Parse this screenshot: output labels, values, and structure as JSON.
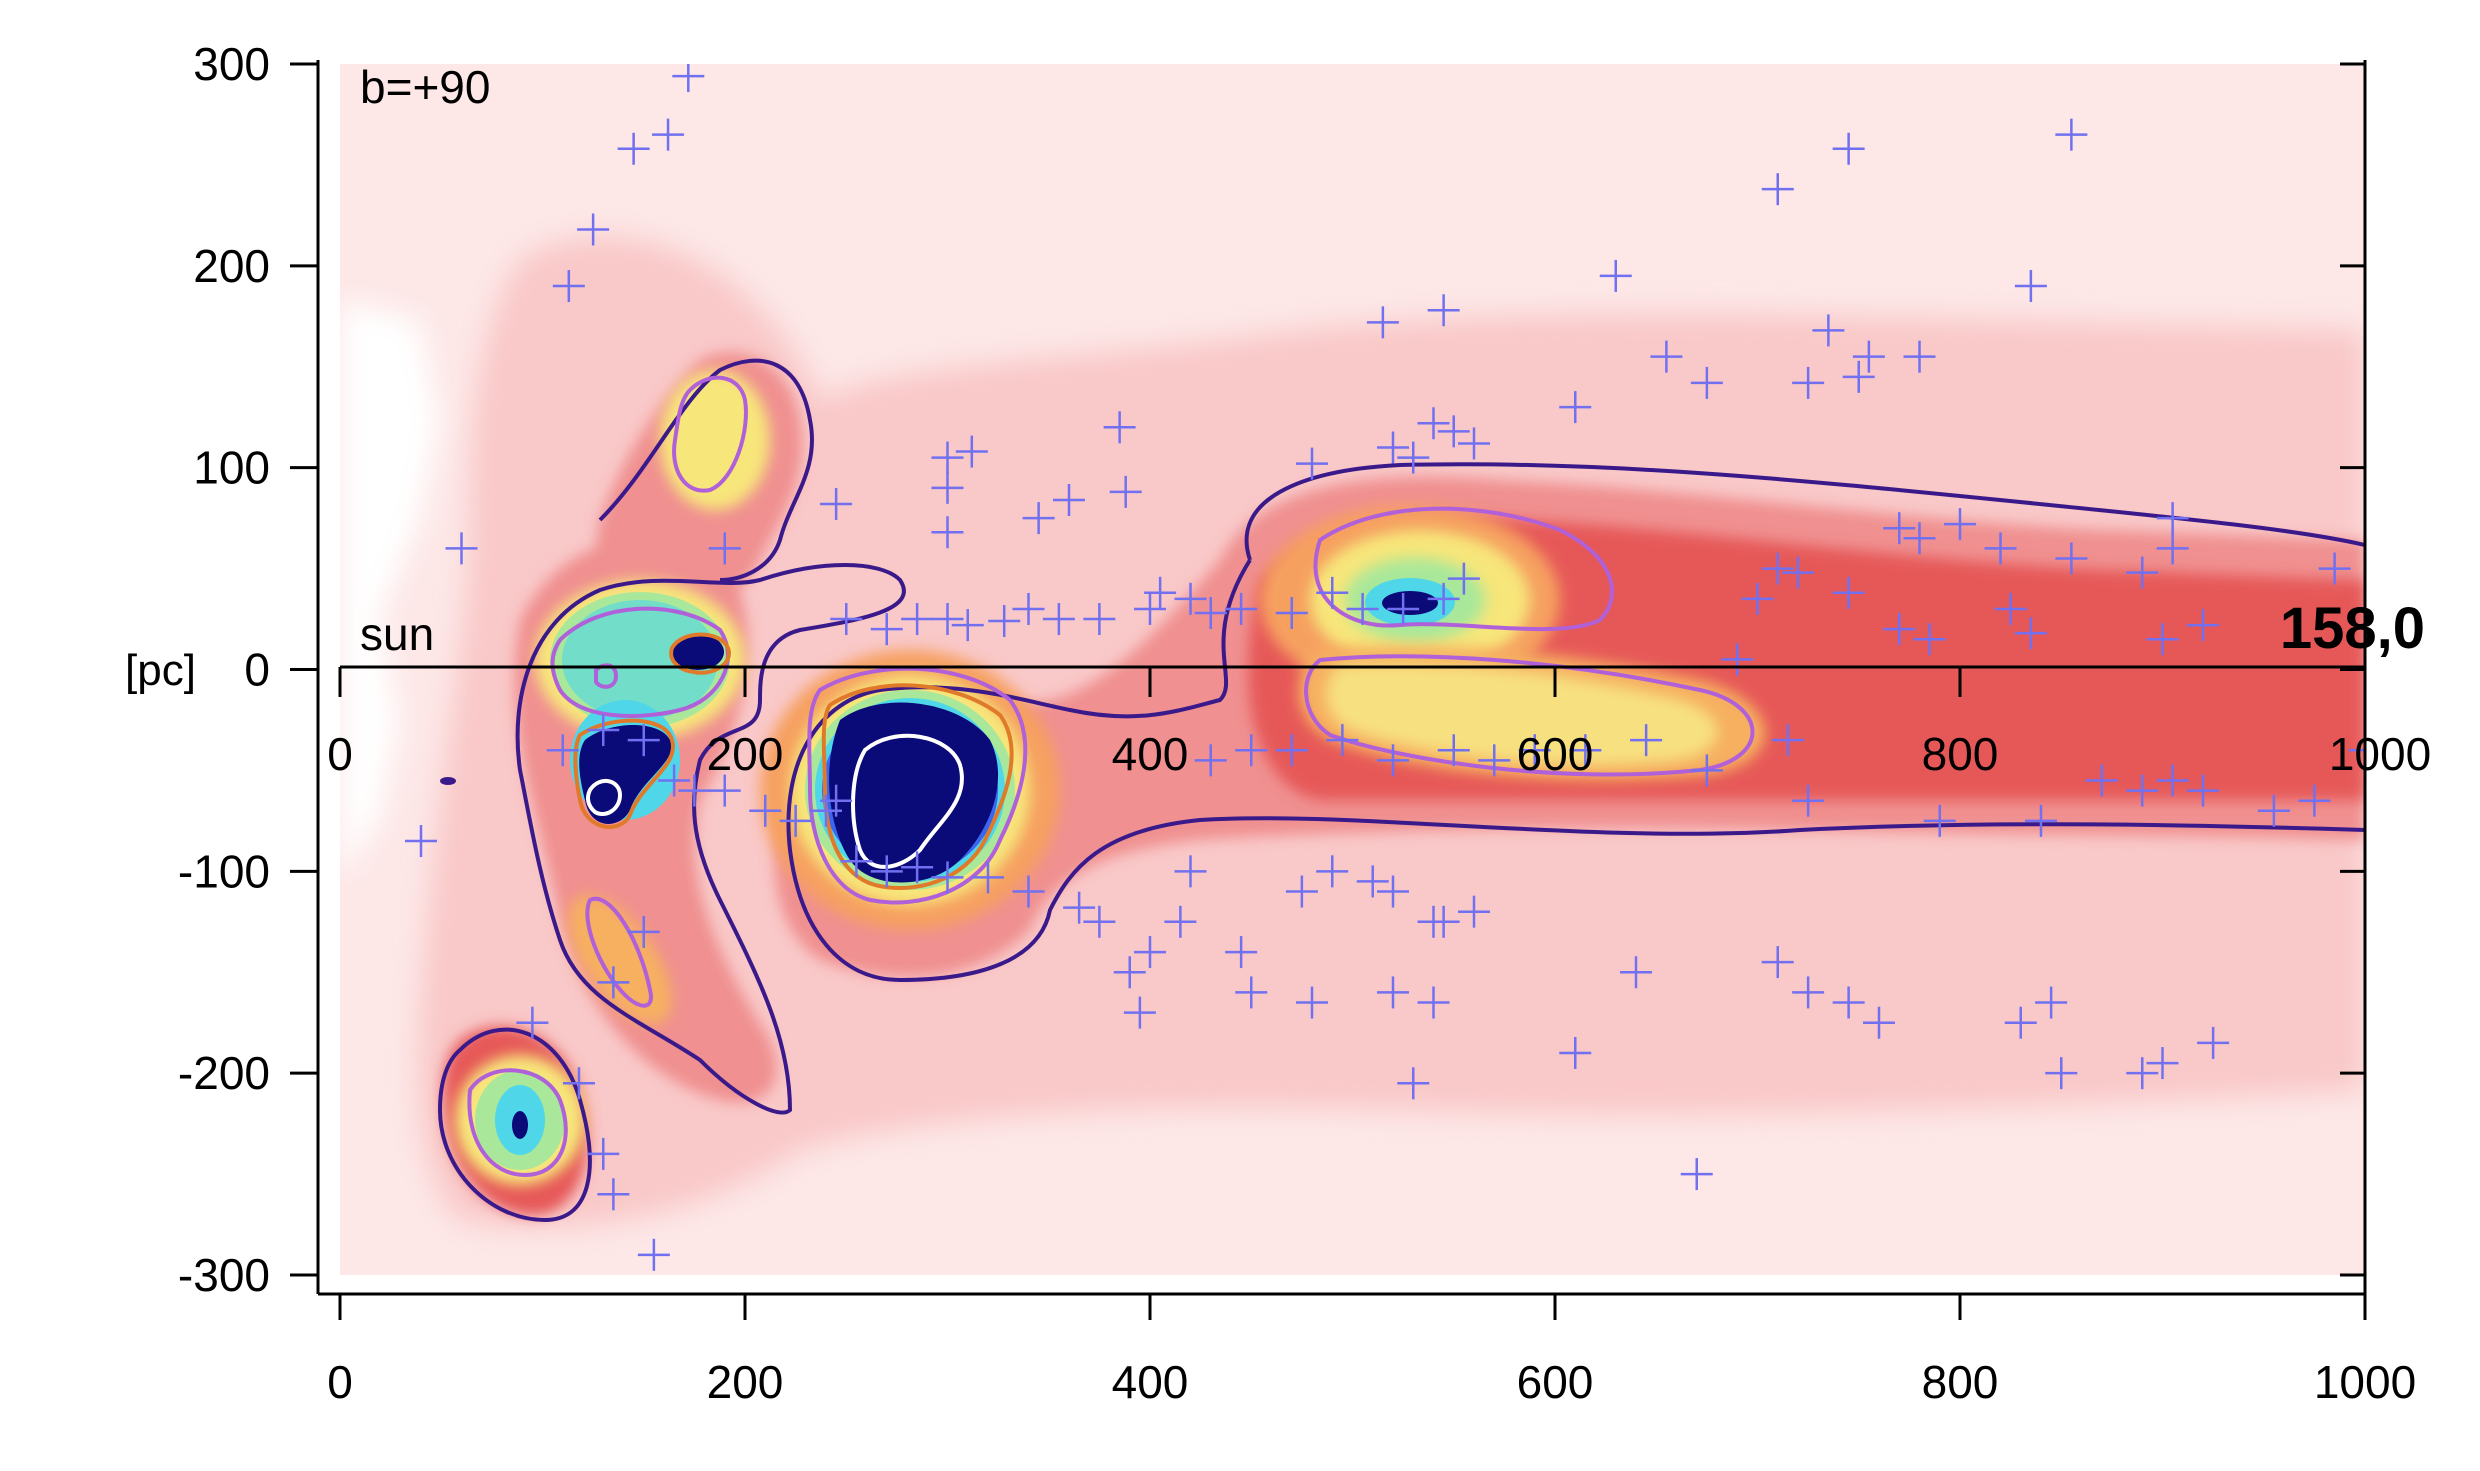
{
  "chart_data": {
    "type": "heatmap",
    "title": "",
    "corner_label": "b=+90",
    "sun_label": "sun",
    "ylabel": "[pc]",
    "value_label": "158,0",
    "xlim": [
      0,
      1000
    ],
    "ylim": [
      -300,
      300
    ],
    "x_ticks": [
      "0",
      "200",
      "400",
      "600",
      "800",
      "1000"
    ],
    "y_ticks": [
      "300",
      "200",
      "100",
      "0",
      "-100",
      "-200",
      "-300"
    ],
    "inner_x_ticks": [
      "0",
      "200",
      "400",
      "600",
      "800",
      "1000"
    ],
    "grid": false,
    "colors": {
      "bg_light": "#fde7e7",
      "bg_mid": "#f9c2c2",
      "band": "#ef8a8a",
      "core": "#e65454",
      "orange": "#f39a4a",
      "yellow": "#f7e67a",
      "green": "#a9e89a",
      "cyan": "#4fd6e8",
      "blue": "#3a66f0",
      "navy": "#0a0a78",
      "contour_outer": "#3a1a8a",
      "contour_inner": "#b060d8",
      "contour_orange": "#e07a2a",
      "contour_white": "#ffffff",
      "marker": "#7070f0"
    },
    "clouds": [
      {
        "x": 530,
        "y": 33,
        "peak": "navy"
      },
      {
        "x": 290,
        "y": -75,
        "peak": "navy"
      },
      {
        "x": 175,
        "y": 5,
        "peak": "navy"
      },
      {
        "x": 135,
        "y": -45,
        "peak": "navy"
      },
      {
        "x": 100,
        "y": -225,
        "peak": "navy"
      },
      {
        "x": 185,
        "y": 110,
        "peak": "yellow"
      },
      {
        "x": 650,
        "y": -30,
        "peak": "yellow"
      }
    ],
    "markers": [
      [
        172,
        294
      ],
      [
        162,
        265
      ],
      [
        145,
        258
      ],
      [
        125,
        218
      ],
      [
        113,
        190
      ],
      [
        60,
        60
      ],
      [
        190,
        60
      ],
      [
        245,
        82
      ],
      [
        300,
        90
      ],
      [
        312,
        108
      ],
      [
        300,
        105
      ],
      [
        300,
        68
      ],
      [
        345,
        75
      ],
      [
        360,
        84
      ],
      [
        385,
        120
      ],
      [
        388,
        88
      ],
      [
        250,
        25
      ],
      [
        270,
        20
      ],
      [
        285,
        25
      ],
      [
        300,
        25
      ],
      [
        310,
        22
      ],
      [
        328,
        24
      ],
      [
        340,
        30
      ],
      [
        355,
        25
      ],
      [
        375,
        25
      ],
      [
        400,
        30
      ],
      [
        405,
        38
      ],
      [
        420,
        35
      ],
      [
        430,
        28
      ],
      [
        445,
        30
      ],
      [
        470,
        28
      ],
      [
        490,
        38
      ],
      [
        505,
        30
      ],
      [
        525,
        30
      ],
      [
        545,
        35
      ],
      [
        555,
        45
      ],
      [
        480,
        102
      ],
      [
        520,
        110
      ],
      [
        530,
        105
      ],
      [
        515,
        172
      ],
      [
        545,
        178
      ],
      [
        540,
        122
      ],
      [
        550,
        118
      ],
      [
        560,
        112
      ],
      [
        610,
        130
      ],
      [
        630,
        195
      ],
      [
        655,
        155
      ],
      [
        675,
        142
      ],
      [
        710,
        238
      ],
      [
        745,
        258
      ],
      [
        735,
        168
      ],
      [
        725,
        142
      ],
      [
        750,
        145
      ],
      [
        755,
        155
      ],
      [
        780,
        155
      ],
      [
        855,
        265
      ],
      [
        835,
        190
      ],
      [
        770,
        70
      ],
      [
        780,
        65
      ],
      [
        800,
        72
      ],
      [
        820,
        60
      ],
      [
        855,
        55
      ],
      [
        890,
        48
      ],
      [
        905,
        75
      ],
      [
        905,
        60
      ],
      [
        985,
        50
      ],
      [
        710,
        50
      ],
      [
        720,
        48
      ],
      [
        700,
        35
      ],
      [
        690,
        5
      ],
      [
        745,
        38
      ],
      [
        770,
        20
      ],
      [
        785,
        15
      ],
      [
        825,
        30
      ],
      [
        835,
        18
      ],
      [
        900,
        15
      ],
      [
        920,
        22
      ],
      [
        40,
        -85
      ],
      [
        110,
        -40
      ],
      [
        130,
        -30
      ],
      [
        150,
        -35
      ],
      [
        165,
        -55
      ],
      [
        175,
        -60
      ],
      [
        190,
        -60
      ],
      [
        210,
        -70
      ],
      [
        225,
        -75
      ],
      [
        240,
        -70
      ],
      [
        245,
        -65
      ],
      [
        255,
        -95
      ],
      [
        270,
        -100
      ],
      [
        285,
        -98
      ],
      [
        300,
        -103
      ],
      [
        320,
        -103
      ],
      [
        340,
        -110
      ],
      [
        365,
        -118
      ],
      [
        375,
        -125
      ],
      [
        390,
        -150
      ],
      [
        395,
        -170
      ],
      [
        400,
        -140
      ],
      [
        415,
        -125
      ],
      [
        420,
        -100
      ],
      [
        445,
        -140
      ],
      [
        450,
        -160
      ],
      [
        480,
        -165
      ],
      [
        475,
        -110
      ],
      [
        490,
        -100
      ],
      [
        510,
        -105
      ],
      [
        520,
        -110
      ],
      [
        540,
        -125
      ],
      [
        430,
        -45
      ],
      [
        450,
        -40
      ],
      [
        470,
        -40
      ],
      [
        495,
        -35
      ],
      [
        520,
        -45
      ],
      [
        550,
        -40
      ],
      [
        570,
        -45
      ],
      [
        590,
        -40
      ],
      [
        615,
        -40
      ],
      [
        645,
        -35
      ],
      [
        675,
        -50
      ],
      [
        715,
        -35
      ],
      [
        725,
        -65
      ],
      [
        790,
        -75
      ],
      [
        840,
        -75
      ],
      [
        870,
        -55
      ],
      [
        890,
        -60
      ],
      [
        905,
        -55
      ],
      [
        920,
        -60
      ],
      [
        955,
        -70
      ],
      [
        975,
        -65
      ],
      [
        1000,
        -40
      ],
      [
        520,
        -160
      ],
      [
        540,
        -165
      ],
      [
        545,
        -125
      ],
      [
        560,
        -120
      ],
      [
        610,
        -190
      ],
      [
        640,
        -150
      ],
      [
        670,
        -250
      ],
      [
        530,
        -205
      ],
      [
        710,
        -145
      ],
      [
        725,
        -160
      ],
      [
        745,
        -165
      ],
      [
        760,
        -175
      ],
      [
        830,
        -175
      ],
      [
        845,
        -165
      ],
      [
        850,
        -200
      ],
      [
        890,
        -200
      ],
      [
        900,
        -195
      ],
      [
        925,
        -185
      ],
      [
        130,
        -240
      ],
      [
        135,
        -260
      ],
      [
        155,
        -290
      ],
      [
        118,
        -205
      ],
      [
        95,
        -175
      ],
      [
        135,
        -155
      ],
      [
        150,
        -130
      ]
    ]
  }
}
